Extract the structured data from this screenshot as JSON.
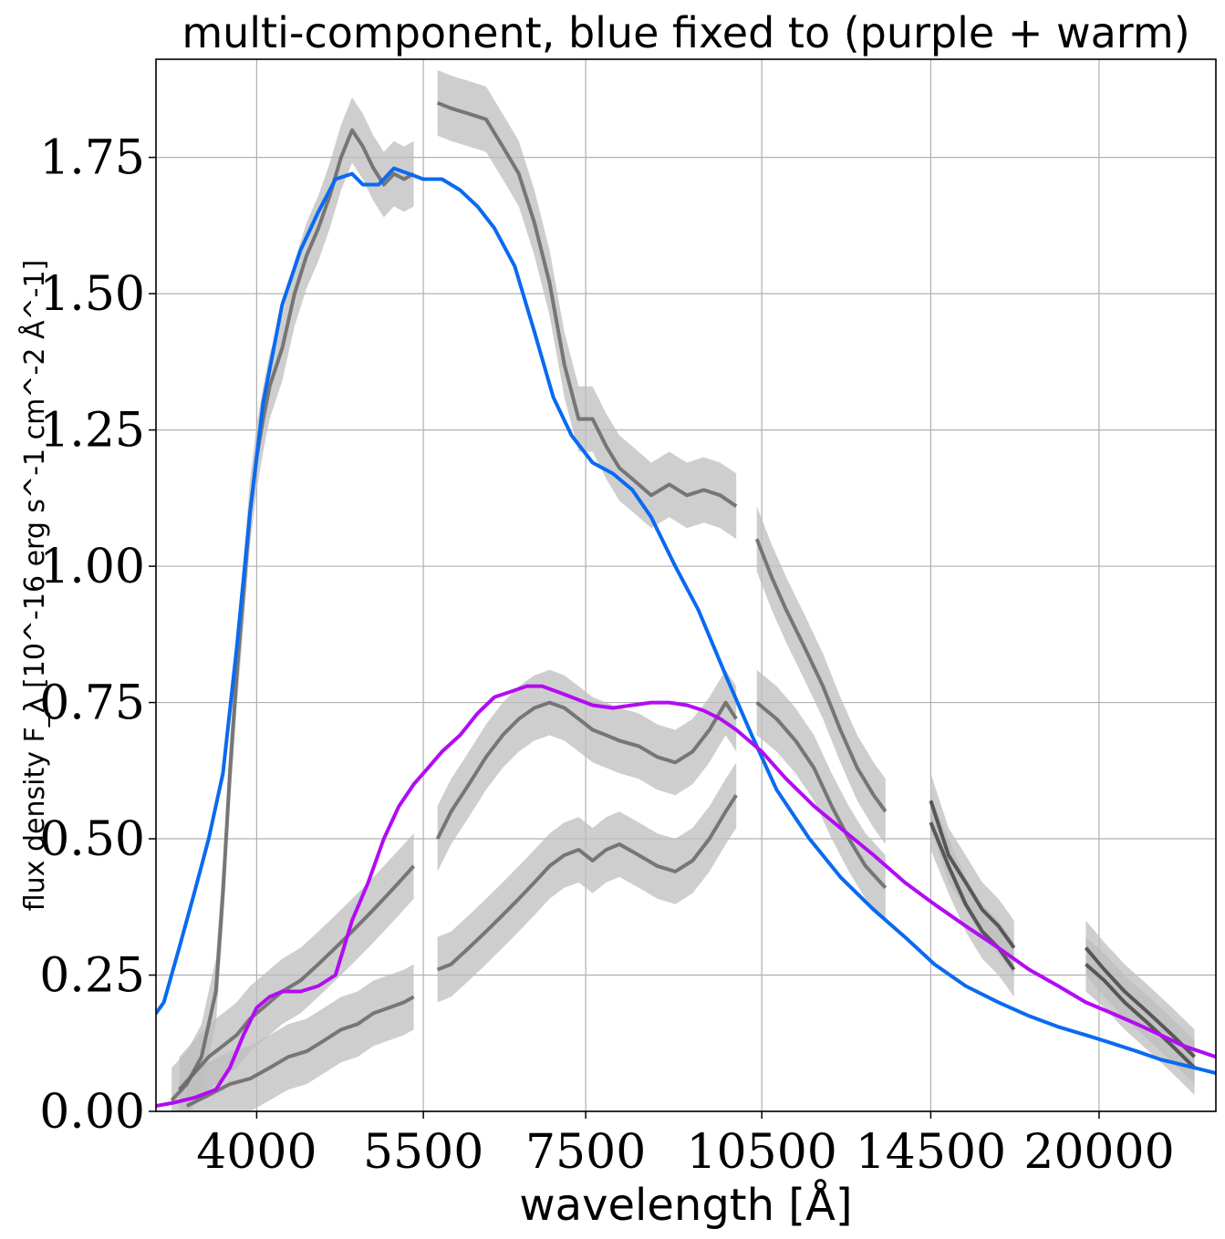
{
  "chart_data": {
    "type": "line",
    "title": "multi-component, blue fixed to (purple + warm)",
    "xlabel": "wavelength [Å]",
    "ylabel": "flux density F_λ [10^-16 erg s^-1 cm^-2 Å^-1]",
    "xscale": "log",
    "xlim": [
      3300,
      25000
    ],
    "ylim": [
      0,
      1.93
    ],
    "xticks": [
      4000,
      5500,
      7500,
      10500,
      14500,
      20000
    ],
    "xtick_labels": [
      "4000",
      "5500",
      "7500",
      "10500",
      "14500",
      "20000"
    ],
    "yticks": [
      0,
      0.25,
      0.5,
      0.75,
      1.0,
      1.25,
      1.5,
      1.75
    ],
    "ytick_labels": [
      "0.00",
      "0.25",
      "0.50",
      "0.75",
      "1.00",
      "1.25",
      "1.50",
      "1.75"
    ],
    "grid": true,
    "colors": {
      "blue": "#0a6af0",
      "purple": "#b20cf2",
      "spectra": "#666666",
      "spectra_band": "#bdbdbd"
    },
    "series": [
      {
        "key": "blue",
        "x": [
          3300,
          3350,
          3450,
          3550,
          3650,
          3750,
          3850,
          3950,
          4050,
          4200,
          4350,
          4500,
          4650,
          4800,
          4900,
          5050,
          5200,
          5350,
          5500,
          5700,
          5900,
          6100,
          6300,
          6550,
          6800,
          7050,
          7300,
          7600,
          7900,
          8200,
          8500,
          8900,
          9300,
          9800,
          10300,
          10800,
          11500,
          12200,
          13000,
          13800,
          14600,
          15500,
          16500,
          17500,
          18500,
          19500,
          20500,
          21500,
          22500,
          23500,
          25000
        ],
        "y": [
          0.18,
          0.2,
          0.3,
          0.4,
          0.5,
          0.62,
          0.85,
          1.1,
          1.3,
          1.48,
          1.58,
          1.65,
          1.71,
          1.72,
          1.7,
          1.7,
          1.73,
          1.72,
          1.71,
          1.71,
          1.69,
          1.66,
          1.62,
          1.55,
          1.43,
          1.31,
          1.24,
          1.19,
          1.17,
          1.14,
          1.09,
          1.0,
          0.92,
          0.8,
          0.69,
          0.59,
          0.5,
          0.43,
          0.37,
          0.32,
          0.27,
          0.23,
          0.2,
          0.175,
          0.155,
          0.14,
          0.125,
          0.11,
          0.095,
          0.085,
          0.07
        ]
      },
      {
        "key": "purple",
        "x": [
          3300,
          3400,
          3550,
          3700,
          3800,
          3900,
          4000,
          4100,
          4200,
          4350,
          4500,
          4650,
          4800,
          4950,
          5100,
          5250,
          5400,
          5550,
          5700,
          5900,
          6100,
          6300,
          6500,
          6700,
          6900,
          7100,
          7300,
          7600,
          7900,
          8200,
          8500,
          8800,
          9100,
          9400,
          9700,
          10000,
          10500,
          11000,
          11600,
          12200,
          13000,
          13800,
          14600,
          15500,
          16500,
          17500,
          18500,
          19500,
          20500,
          21500,
          22500,
          23500,
          25000
        ],
        "y": [
          0.01,
          0.015,
          0.025,
          0.04,
          0.08,
          0.14,
          0.19,
          0.21,
          0.22,
          0.22,
          0.23,
          0.25,
          0.35,
          0.42,
          0.5,
          0.56,
          0.6,
          0.63,
          0.66,
          0.69,
          0.73,
          0.76,
          0.77,
          0.78,
          0.78,
          0.77,
          0.76,
          0.745,
          0.74,
          0.745,
          0.75,
          0.75,
          0.745,
          0.735,
          0.72,
          0.7,
          0.66,
          0.61,
          0.56,
          0.52,
          0.47,
          0.42,
          0.38,
          0.34,
          0.3,
          0.26,
          0.23,
          0.2,
          0.18,
          0.16,
          0.14,
          0.12,
          0.1
        ]
      },
      {
        "key": "observed_1",
        "segment": 1,
        "x": [
          3400,
          3500,
          3600,
          3700,
          3750,
          3800,
          3850,
          3900,
          3950,
          4000,
          4050,
          4100,
          4200,
          4300,
          4400,
          4500,
          4600,
          4700,
          4800,
          4900,
          5000,
          5100,
          5200,
          5300,
          5400
        ],
        "y": [
          0.02,
          0.05,
          0.1,
          0.22,
          0.4,
          0.62,
          0.8,
          0.95,
          1.1,
          1.2,
          1.27,
          1.33,
          1.4,
          1.5,
          1.57,
          1.62,
          1.68,
          1.75,
          1.8,
          1.77,
          1.73,
          1.7,
          1.72,
          1.71,
          1.72
        ]
      },
      {
        "key": "observed_1",
        "segment": 2,
        "x": [
          5650,
          5800,
          6000,
          6200,
          6400,
          6600,
          6800,
          7000,
          7200,
          7400,
          7600,
          7800,
          8000,
          8200,
          8500,
          8800,
          9100,
          9400,
          9700,
          10000
        ],
        "y": [
          1.85,
          1.84,
          1.83,
          1.82,
          1.77,
          1.72,
          1.63,
          1.52,
          1.37,
          1.27,
          1.27,
          1.22,
          1.18,
          1.16,
          1.13,
          1.15,
          1.13,
          1.14,
          1.13,
          1.11
        ]
      },
      {
        "key": "observed_1",
        "segment": 3,
        "x": [
          10400,
          10700,
          11000,
          11400,
          11800,
          12200,
          12600,
          13000,
          13300
        ],
        "y": [
          1.05,
          0.98,
          0.92,
          0.85,
          0.78,
          0.7,
          0.63,
          0.58,
          0.55
        ]
      },
      {
        "key": "observed_2",
        "segment": 1,
        "x": [
          3450,
          3550,
          3650,
          3750,
          3850,
          3950,
          4050,
          4200,
          4350,
          4500,
          4650,
          4800,
          4950,
          5100,
          5250,
          5400
        ],
        "y": [
          0.04,
          0.07,
          0.1,
          0.12,
          0.14,
          0.17,
          0.19,
          0.22,
          0.24,
          0.27,
          0.3,
          0.33,
          0.36,
          0.39,
          0.42,
          0.45
        ]
      },
      {
        "key": "observed_2",
        "segment": 2,
        "x": [
          5650,
          5800,
          6000,
          6200,
          6400,
          6600,
          6800,
          7000,
          7200,
          7400,
          7600,
          7800,
          8000,
          8300,
          8600,
          8900,
          9200,
          9500,
          9800,
          10000
        ],
        "y": [
          0.5,
          0.55,
          0.6,
          0.65,
          0.69,
          0.72,
          0.74,
          0.75,
          0.74,
          0.72,
          0.7,
          0.69,
          0.68,
          0.67,
          0.65,
          0.64,
          0.66,
          0.7,
          0.75,
          0.72
        ]
      },
      {
        "key": "observed_2",
        "segment": 3,
        "x": [
          10400,
          10800,
          11200,
          11600,
          12000,
          12400,
          12800,
          13300
        ],
        "y": [
          0.75,
          0.72,
          0.68,
          0.63,
          0.56,
          0.5,
          0.45,
          0.41
        ]
      },
      {
        "key": "observed_3",
        "segment": 1,
        "x": [
          3500,
          3650,
          3800,
          3950,
          4100,
          4250,
          4400,
          4550,
          4700,
          4850,
          5000,
          5150,
          5300,
          5400
        ],
        "y": [
          0.01,
          0.03,
          0.05,
          0.06,
          0.08,
          0.1,
          0.11,
          0.13,
          0.15,
          0.16,
          0.18,
          0.19,
          0.2,
          0.21
        ]
      },
      {
        "key": "observed_3",
        "segment": 2,
        "x": [
          5650,
          5800,
          6000,
          6200,
          6400,
          6600,
          6800,
          7000,
          7200,
          7400,
          7600,
          7800,
          8000,
          8300,
          8600,
          8900,
          9200,
          9500,
          9800,
          10000
        ],
        "y": [
          0.26,
          0.27,
          0.3,
          0.33,
          0.36,
          0.39,
          0.42,
          0.45,
          0.47,
          0.48,
          0.46,
          0.48,
          0.49,
          0.47,
          0.45,
          0.44,
          0.46,
          0.5,
          0.55,
          0.58
        ]
      },
      {
        "key": "observed_ir",
        "segment": 1,
        "x": [
          14500,
          15000,
          15500,
          16000,
          16500,
          17000
        ],
        "y": [
          0.57,
          0.47,
          0.42,
          0.37,
          0.34,
          0.3
        ]
      },
      {
        "key": "observed_ir",
        "segment": 2,
        "x": [
          14500,
          15000,
          15500,
          16000,
          16500,
          17000
        ],
        "y": [
          0.53,
          0.45,
          0.38,
          0.33,
          0.3,
          0.26
        ]
      },
      {
        "key": "observed_ir",
        "segment": 3,
        "x": [
          19500,
          20200,
          21000,
          22000,
          23000,
          24000
        ],
        "y": [
          0.3,
          0.26,
          0.22,
          0.18,
          0.14,
          0.1
        ]
      },
      {
        "key": "observed_ir",
        "segment": 4,
        "x": [
          19500,
          20200,
          21000,
          22000,
          23000,
          24000
        ],
        "y": [
          0.27,
          0.24,
          0.2,
          0.16,
          0.12,
          0.08
        ]
      }
    ]
  }
}
